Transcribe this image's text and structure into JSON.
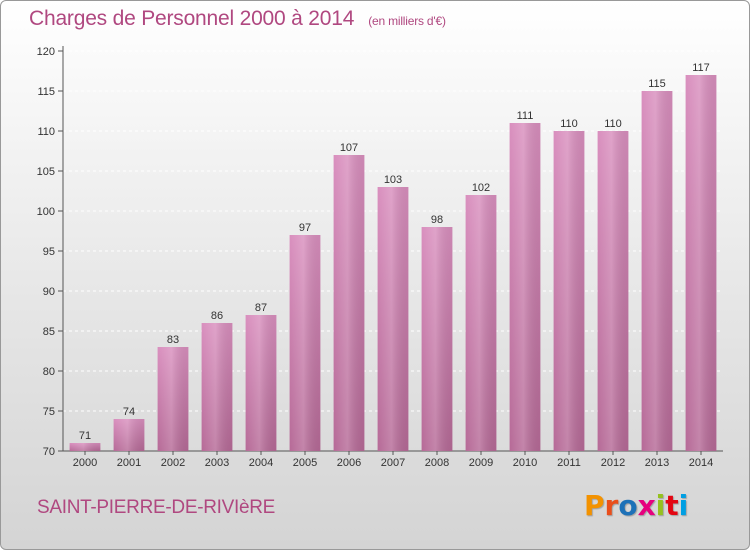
{
  "header": {
    "title": "Charges de Personnel 2000 à 2014",
    "subtitle": "(en milliers d'€)"
  },
  "footer": {
    "commune": "SAINT-PIERRE-DE-RIVIèRE",
    "logo_letters": [
      "P",
      "r",
      "o",
      "x",
      "i",
      "t",
      "i"
    ],
    "logo_colors": [
      "#f39200",
      "#e94e1b",
      "#1d71b8",
      "#e6007e",
      "#95c11f",
      "#e30613",
      "#009fe3"
    ]
  },
  "chart_data": {
    "type": "bar",
    "categories": [
      "2000",
      "2001",
      "2002",
      "2003",
      "2004",
      "2005",
      "2006",
      "2007",
      "2008",
      "2009",
      "2010",
      "2011",
      "2012",
      "2013",
      "2014"
    ],
    "values": [
      71,
      74,
      83,
      86,
      87,
      97,
      107,
      103,
      98,
      102,
      111,
      110,
      110,
      115,
      117
    ],
    "ylim": [
      70,
      120
    ],
    "yticks": [
      70,
      75,
      80,
      85,
      90,
      95,
      100,
      105,
      110,
      115,
      120
    ],
    "grid": true,
    "bar_color": "#d98fbe",
    "bar_color_dark": "#b66a97"
  }
}
